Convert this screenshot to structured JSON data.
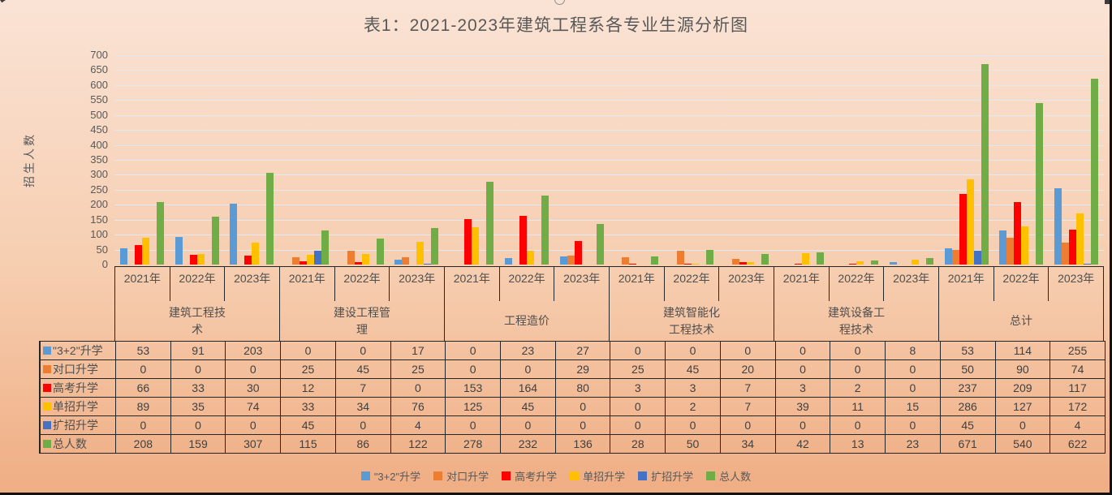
{
  "title": "表1：2021-2023年建筑工程系各专业生源分析图",
  "chart_data": {
    "type": "bar",
    "title": "表1：2021-2023年建筑工程系各专业生源分析图",
    "ylabel": "招生人数",
    "ylim": [
      0,
      700
    ],
    "ytick_step": 50,
    "grid": "horizontal",
    "legend_position": "bottom",
    "group_names": [
      "建筑工程技术",
      "建设工程管理",
      "工程造价",
      "建筑智能化工程技术",
      "建筑设备工程技术",
      "总计"
    ],
    "years": [
      "2021年",
      "2022年",
      "2023年"
    ],
    "series": [
      {
        "name": "\"3+2\"升学",
        "color": "#5B9BD5",
        "values": [
          53,
          91,
          203,
          0,
          0,
          17,
          0,
          23,
          27,
          0,
          0,
          0,
          0,
          0,
          8,
          53,
          114,
          255
        ]
      },
      {
        "name": "对口升学",
        "color": "#ED7D31",
        "values": [
          0,
          0,
          0,
          25,
          45,
          25,
          0,
          0,
          29,
          25,
          45,
          20,
          0,
          0,
          0,
          50,
          90,
          74
        ]
      },
      {
        "name": "高考升学",
        "color": "#FF0000",
        "values": [
          66,
          33,
          30,
          12,
          7,
          0,
          153,
          164,
          80,
          3,
          3,
          7,
          3,
          2,
          0,
          237,
          209,
          117
        ]
      },
      {
        "name": "单招升学",
        "color": "#FFC000",
        "values": [
          89,
          35,
          74,
          33,
          34,
          76,
          125,
          45,
          0,
          0,
          2,
          7,
          39,
          11,
          15,
          286,
          127,
          172
        ]
      },
      {
        "name": "扩招升学",
        "color": "#4472C4",
        "values": [
          0,
          0,
          0,
          45,
          0,
          4,
          0,
          0,
          0,
          0,
          0,
          0,
          0,
          0,
          0,
          45,
          0,
          4
        ]
      },
      {
        "name": "总人数",
        "color": "#70AD47",
        "values": [
          208,
          159,
          307,
          115,
          86,
          122,
          278,
          232,
          136,
          28,
          50,
          34,
          42,
          13,
          23,
          671,
          540,
          622
        ]
      }
    ]
  },
  "colors": {
    "background_top": "#FAE3D5",
    "background_bottom": "#EFAD83",
    "gridline": "#E1EAF2",
    "table_border": "#262626",
    "text": "#595959"
  }
}
